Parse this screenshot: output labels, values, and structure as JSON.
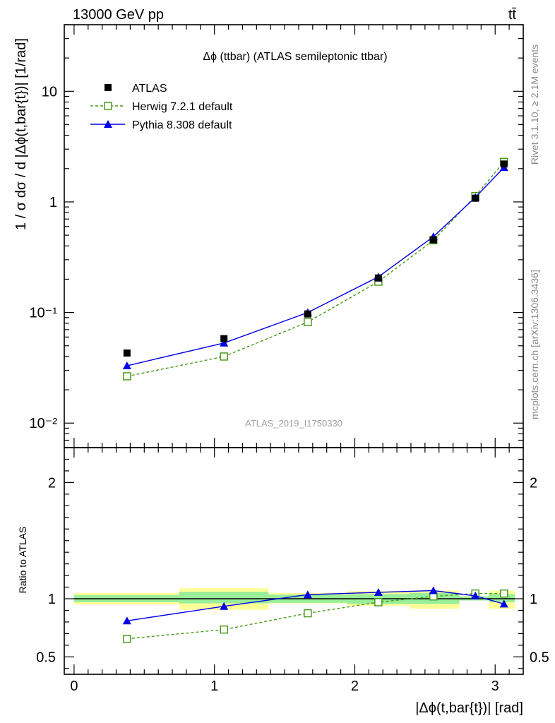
{
  "header": {
    "energy_label": "13000 GeV pp",
    "process_label": "tt̄"
  },
  "side_labels": {
    "rivet": "Rivet 3.1.10, ≥ 2.1M events",
    "mcplots": "mcplots.cern.ch [arXiv:1306.3436]"
  },
  "chart_data": [
    {
      "type": "line",
      "title": "Δϕ (ttbar) (ATLAS semileptonic ttbar)",
      "ylabel": "1 / σ dσ / d |Δϕ(t,bar{t})| [1/rad]",
      "xlabel": "",
      "watermark": "ATLAS_2019_I1750330",
      "y_scale": "log",
      "xlim": [
        -0.07,
        3.2
      ],
      "ylim": [
        0.006,
        40
      ],
      "y_ticks": [
        {
          "value": 0.01,
          "label": "10⁻²"
        },
        {
          "value": 0.1,
          "label": "10⁻¹"
        },
        {
          "value": 1,
          "label": "1"
        },
        {
          "value": 10,
          "label": "10"
        }
      ],
      "legend_position": "top-left",
      "series": [
        {
          "name": "ATLAS",
          "marker": "filled-square",
          "color": "#000000",
          "x": [
            0.377,
            1.068,
            1.665,
            2.168,
            2.56,
            2.859,
            3.063
          ],
          "y": [
            0.043,
            0.058,
            0.097,
            0.205,
            0.455,
            1.08,
            2.2
          ]
        },
        {
          "name": "Herwig 7.2.1 default",
          "marker": "open-square",
          "line": "dashed",
          "color": "#4a9a1a",
          "x": [
            0.377,
            1.068,
            1.665,
            2.168,
            2.56,
            2.859,
            3.063
          ],
          "y": [
            0.0265,
            0.04,
            0.082,
            0.19,
            0.45,
            1.13,
            2.3
          ]
        },
        {
          "name": "Pythia 8.308 default",
          "marker": "filled-triangle",
          "line": "solid",
          "color": "#0000e6",
          "x": [
            0.377,
            1.068,
            1.665,
            2.168,
            2.56,
            2.859,
            3.063
          ],
          "y": [
            0.033,
            0.053,
            0.1,
            0.21,
            0.485,
            1.1,
            2.05
          ]
        }
      ]
    },
    {
      "type": "line",
      "ylabel": "Ratio to ATLAS",
      "xlabel": "|Δϕ(t,bar{t})| [rad]",
      "xlim": [
        -0.07,
        3.2
      ],
      "ylim": [
        0.35,
        2.3
      ],
      "x_ticks": [
        {
          "value": 0,
          "label": "0"
        },
        {
          "value": 1,
          "label": "1"
        },
        {
          "value": 2,
          "label": "2"
        },
        {
          "value": 3,
          "label": "3"
        }
      ],
      "y_ticks": [
        {
          "value": 0.5,
          "label": "0.5"
        },
        {
          "value": 1,
          "label": "1"
        },
        {
          "value": 2,
          "label": "2"
        }
      ],
      "uncertainty_bands": [
        {
          "x_low": 0.0,
          "x_high": 0.75,
          "inner": [
            0.97,
            1.03
          ],
          "outer": [
            0.95,
            1.05
          ]
        },
        {
          "x_low": 0.75,
          "x_high": 1.385,
          "inner": [
            0.96,
            1.06
          ],
          "outer": [
            0.905,
            1.09
          ]
        },
        {
          "x_low": 1.385,
          "x_high": 1.945,
          "inner": [
            0.965,
            1.035
          ],
          "outer": [
            0.96,
            1.05
          ]
        },
        {
          "x_low": 1.945,
          "x_high": 2.39,
          "inner": [
            0.955,
            1.04
          ],
          "outer": [
            0.94,
            1.065
          ]
        },
        {
          "x_low": 2.39,
          "x_high": 2.745,
          "inner": [
            0.955,
            1.05
          ],
          "outer": [
            0.915,
            1.07
          ]
        },
        {
          "x_low": 2.745,
          "x_high": 2.955,
          "inner": [
            0.985,
            1.02
          ],
          "outer": [
            0.985,
            1.02
          ]
        },
        {
          "x_low": 2.955,
          "x_high": 3.14,
          "inner": [
            0.97,
            1.04
          ],
          "outer": [
            0.915,
            1.07
          ]
        }
      ],
      "series": [
        {
          "name": "Herwig 7.2.1 default",
          "marker": "open-square",
          "line": "dashed",
          "color": "#4a9a1a",
          "x": [
            0.377,
            1.068,
            1.665,
            2.168,
            2.56,
            2.859,
            3.063
          ],
          "y": [
            0.655,
            0.735,
            0.875,
            0.97,
            1.02,
            1.045,
            1.045
          ]
        },
        {
          "name": "Pythia 8.308 default",
          "marker": "filled-triangle",
          "line": "solid",
          "color": "#0000e6",
          "x": [
            0.377,
            1.068,
            1.665,
            2.168,
            2.56,
            2.859,
            3.063
          ],
          "y": [
            0.81,
            0.935,
            1.035,
            1.055,
            1.07,
            1.025,
            0.955
          ]
        }
      ]
    }
  ]
}
